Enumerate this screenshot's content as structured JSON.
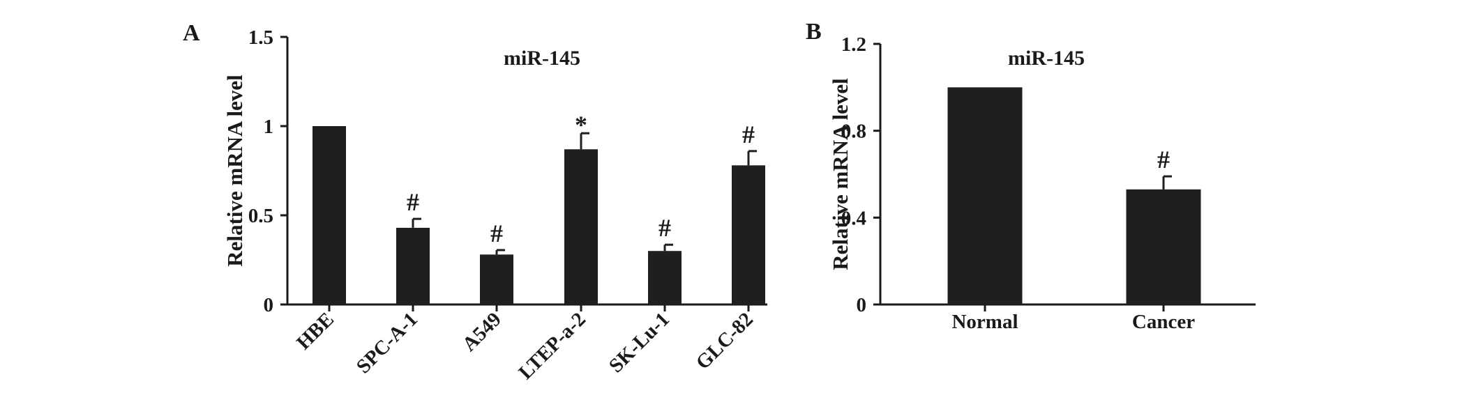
{
  "chart_data": [
    {
      "panel": "A",
      "type": "bar",
      "title": "miR-145",
      "ylabel": "Relative mRNA level",
      "xlabel": "",
      "ylim": [
        0,
        1.5
      ],
      "yticks": [
        0,
        0.5,
        1,
        1.5
      ],
      "ytick_labels": [
        "0",
        "0.5",
        "1",
        "1.5"
      ],
      "categories": [
        "HBE",
        "SPC-A-1",
        "A549",
        "LTEP-a-2",
        "SK-Lu-1",
        "GLC-82"
      ],
      "values": [
        1.0,
        0.43,
        0.28,
        0.87,
        0.3,
        0.78
      ],
      "errors": [
        0,
        0.05,
        0.025,
        0.09,
        0.035,
        0.08
      ],
      "significance": [
        "",
        "#",
        "#",
        "*",
        "#",
        "#"
      ],
      "rotated_x_labels": true,
      "bar_color": "#1f1f1f",
      "grid": false,
      "legend": "none"
    },
    {
      "panel": "B",
      "type": "bar",
      "title": "miR-145",
      "ylabel": "Relative mRNA level",
      "xlabel": "",
      "ylim": [
        0,
        1.2
      ],
      "yticks": [
        0,
        0.4,
        0.8,
        1.2
      ],
      "ytick_labels": [
        "0",
        "0.4",
        "0.8",
        "1.2"
      ],
      "categories": [
        "Normal",
        "Cancer"
      ],
      "values": [
        1.0,
        0.53
      ],
      "errors": [
        0,
        0.06
      ],
      "significance": [
        "",
        "#"
      ],
      "rotated_x_labels": false,
      "bar_color": "#1f1f1f",
      "grid": false,
      "legend": "none"
    }
  ]
}
